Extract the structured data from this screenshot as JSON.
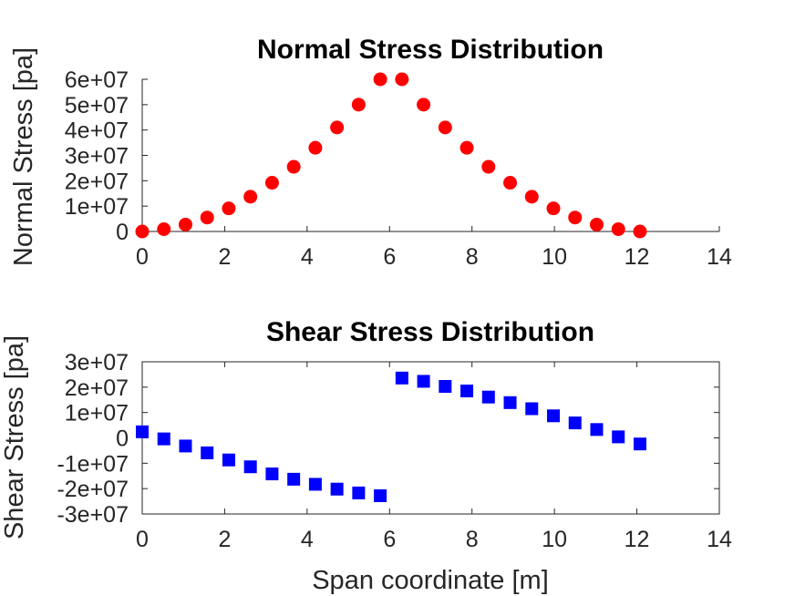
{
  "chart_data": [
    {
      "type": "scatter",
      "title": "Normal Stress Distribution",
      "xlabel": "",
      "ylabel": "Normal Stress [pa]",
      "xlim": [
        0,
        14
      ],
      "ylim": [
        0,
        60000000
      ],
      "grid": false,
      "box": false,
      "marker": "circle",
      "color": "#ff0000",
      "x_ticks": [
        "0",
        "2",
        "4",
        "6",
        "8",
        "10",
        "12",
        "14"
      ],
      "y_ticks": [
        "0",
        "1e+07",
        "2e+07",
        "3e+07",
        "4e+07",
        "5e+07",
        "6e+07"
      ],
      "series": [
        {
          "x": [
            0,
            0.525,
            1.05,
            1.575,
            2.1,
            2.625,
            3.15,
            3.675,
            4.2,
            4.725,
            5.25,
            5.775,
            6.3,
            6.825,
            7.35,
            7.875,
            8.4,
            8.925,
            9.45,
            9.975,
            10.5,
            11.025,
            11.55,
            12.075
          ],
          "y": [
            0,
            900000,
            2700000,
            5500000,
            9100000,
            13700000,
            19200000,
            25500000,
            33000000,
            41000000,
            50000000,
            60000000,
            60000000,
            50000000,
            41000000,
            33000000,
            25500000,
            19200000,
            13700000,
            9100000,
            5500000,
            2700000,
            900000,
            0
          ]
        }
      ]
    },
    {
      "type": "scatter",
      "title": "Shear Stress Distribution",
      "xlabel": "Span coordinate [m]",
      "ylabel": "Shear Stress [pa]",
      "xlim": [
        0,
        14
      ],
      "ylim": [
        -30000000,
        30000000
      ],
      "grid": false,
      "box": true,
      "marker": "square",
      "color": "#0000ff",
      "x_ticks": [
        "0",
        "2",
        "4",
        "6",
        "8",
        "10",
        "12",
        "14"
      ],
      "y_ticks": [
        "-3e+07",
        "-2e+07",
        "-1e+07",
        "0",
        "1e+07",
        "2e+07",
        "3e+07"
      ],
      "series": [
        {
          "x": [
            0,
            0.525,
            1.05,
            1.575,
            2.1,
            2.625,
            3.15,
            3.675,
            4.2,
            4.725,
            5.25,
            5.775,
            6.3,
            6.825,
            7.35,
            7.875,
            8.4,
            8.925,
            9.45,
            9.975,
            10.5,
            11.025,
            11.55,
            12.075
          ],
          "y": [
            2400000,
            -400000,
            -3200000,
            -5900000,
            -8700000,
            -11400000,
            -14200000,
            -16300000,
            -18300000,
            -20200000,
            -21700000,
            -22800000,
            23600000,
            22300000,
            20300000,
            18500000,
            16100000,
            13900000,
            11500000,
            8700000,
            5900000,
            3300000,
            400000,
            -2400000
          ]
        }
      ]
    }
  ]
}
